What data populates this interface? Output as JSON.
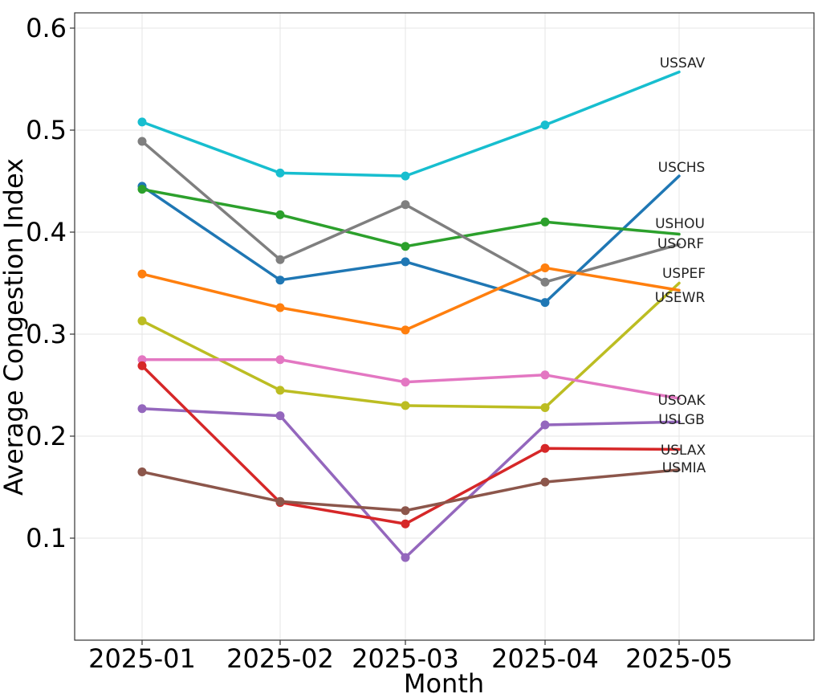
{
  "chart_data": {
    "type": "line",
    "title": "",
    "xlabel": "Month",
    "ylabel": "Average Congestion Index",
    "categories": [
      "2025-01",
      "2025-02",
      "2025-03",
      "2025-04",
      "2025-05"
    ],
    "yticks": [
      "0.1",
      "0.2",
      "0.3",
      "0.4",
      "0.5",
      "0.6"
    ],
    "ylim": [
      0.0,
      0.615
    ],
    "grid": true,
    "legend": "end-of-line labels",
    "series": [
      {
        "name": "USSAV",
        "color": "#17becf",
        "values": [
          0.508,
          0.458,
          0.455,
          0.505,
          0.557
        ]
      },
      {
        "name": "USCHS",
        "color": "#1f77b4",
        "values": [
          0.445,
          0.353,
          0.371,
          0.331,
          0.455
        ]
      },
      {
        "name": "USHOU",
        "color": "#2ca02c",
        "values": [
          0.442,
          0.417,
          0.386,
          0.41,
          0.398
        ]
      },
      {
        "name": "USORF",
        "color": "#7f7f7f",
        "values": [
          0.489,
          0.373,
          0.427,
          0.351,
          0.388
        ]
      },
      {
        "name": "USPEF",
        "color": "#bcbd22",
        "values": [
          0.313,
          0.245,
          0.23,
          0.228,
          0.35
        ]
      },
      {
        "name": "USEWR",
        "color": "#ff7f0e",
        "values": [
          0.359,
          0.326,
          0.304,
          0.365,
          0.343
        ]
      },
      {
        "name": "USOAK",
        "color": "#e377c2",
        "values": [
          0.275,
          0.275,
          0.253,
          0.26,
          0.237
        ]
      },
      {
        "name": "USLGB",
        "color": "#9467bd",
        "values": [
          0.227,
          0.22,
          0.081,
          0.211,
          0.214
        ]
      },
      {
        "name": "USLAX",
        "color": "#d62728",
        "values": [
          0.269,
          0.135,
          0.114,
          0.188,
          0.187
        ]
      },
      {
        "name": "USMIA",
        "color": "#8c564b",
        "values": [
          0.165,
          0.136,
          0.127,
          0.155,
          0.167
        ]
      }
    ]
  }
}
